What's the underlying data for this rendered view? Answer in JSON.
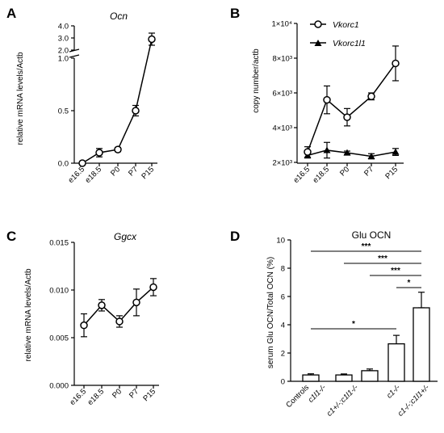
{
  "panels": {
    "A": "A",
    "B": "B",
    "C": "C",
    "D": "D"
  },
  "chart_data": [
    {
      "id": "A",
      "type": "line",
      "title": "Ocn",
      "ylabel": "relative mRNA levels/Actb",
      "categories": [
        "e16.5",
        "e18.5",
        "P0",
        "P7",
        "P15"
      ],
      "y_axis": "broken",
      "ylim_lower": [
        0,
        1.0
      ],
      "ylim_upper": [
        2.0,
        4.0
      ],
      "yticks_lower": [
        "0.0",
        "0.5",
        "1.0"
      ],
      "yticks_upper": [
        "2.0",
        "3.0",
        "4.0"
      ],
      "series": [
        {
          "marker": "circle",
          "values": [
            0.0,
            0.1,
            0.13,
            0.5,
            2.9
          ],
          "errors": [
            0.01,
            0.04,
            0.02,
            0.05,
            0.5
          ]
        }
      ]
    },
    {
      "id": "B",
      "type": "line",
      "ylabel": "copy number/actb",
      "categories": [
        "e16.5",
        "e18.5",
        "P0",
        "P7",
        "P15"
      ],
      "ylim": [
        2000,
        10000
      ],
      "yticks": [
        "2×10³",
        "4×10³",
        "6×10³",
        "8×10³",
        "1×10⁴"
      ],
      "series": [
        {
          "name": "Vkorc1",
          "marker": "circle",
          "values": [
            2600,
            5600,
            4600,
            5800,
            7700
          ],
          "errors": [
            300,
            800,
            500,
            200,
            1000
          ]
        },
        {
          "name": "Vkorc1l1",
          "marker": "triangle",
          "values": [
            2400,
            2700,
            2550,
            2350,
            2600
          ],
          "errors": [
            150,
            450,
            100,
            150,
            200
          ]
        }
      ]
    },
    {
      "id": "C",
      "type": "line",
      "title": "Ggcx",
      "ylabel": "relative mRNA levels/Actb",
      "categories": [
        "e16.5",
        "e18.5",
        "P0",
        "P7",
        "P15"
      ],
      "ylim": [
        0,
        0.015
      ],
      "yticks": [
        "0.000",
        "0.005",
        "0.010",
        "0.015"
      ],
      "series": [
        {
          "marker": "circle",
          "values": [
            0.0063,
            0.0084,
            0.0067,
            0.0087,
            0.0103
          ],
          "errors": [
            0.0012,
            0.0006,
            0.0006,
            0.0014,
            0.0009
          ]
        }
      ]
    },
    {
      "id": "D",
      "type": "bar",
      "title": "Glu OCN",
      "ylabel": "serum Glu OCN/Total OCN (%)",
      "categories": [
        "Controls",
        "c1l1-/-",
        "c1+/-;c1l1-/-",
        "c1-/-",
        "c1-/-;c1l1+/-"
      ],
      "ylim": [
        0,
        10
      ],
      "yticks": [
        "0",
        "2",
        "4",
        "6",
        "8",
        "10"
      ],
      "values": [
        0.45,
        0.45,
        0.75,
        2.65,
        5.2
      ],
      "errors": [
        0.08,
        0.07,
        0.12,
        0.6,
        1.1
      ],
      "significance": [
        "***",
        "***",
        "***",
        "*",
        "*"
      ]
    }
  ]
}
